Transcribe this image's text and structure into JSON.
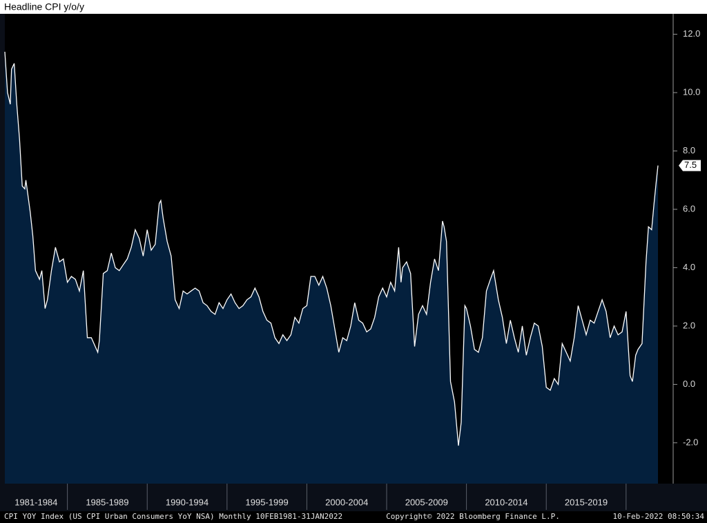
{
  "chart_data": {
    "type": "area",
    "title": "Headline CPI y/o/y",
    "footer_left": "CPI YOY Index (US CPI Urban Consumers YoY NSA)  Monthly 10FEB1981-31JAN2022",
    "footer_middle": "Copyright© 2022 Bloomberg Finance L.P.",
    "footer_right": "10-Feb-2022 08:50:34",
    "last_value_label": "7.5",
    "x_bands": [
      "1981-1984",
      "1985-1989",
      "1990-1994",
      "1995-1999",
      "2000-2004",
      "2005-2009",
      "2010-2014",
      "2015-2019"
    ],
    "xticks": [
      1985,
      1990,
      1995,
      2000,
      2005,
      2010,
      2015,
      2020
    ],
    "xlim": [
      1981.08,
      2022.95
    ],
    "ylim": [
      -3.4,
      12.7
    ],
    "yticks": [
      {
        "value": -2,
        "label": "-2.0"
      },
      {
        "value": 0,
        "label": "0.0"
      },
      {
        "value": 2,
        "label": "2.0"
      },
      {
        "value": 4,
        "label": "4.0"
      },
      {
        "value": 6,
        "label": "6.0"
      },
      {
        "value": 8,
        "label": "8.0"
      },
      {
        "value": 10,
        "label": "10.0"
      },
      {
        "value": 12,
        "label": "12.0"
      }
    ],
    "series": [
      {
        "name": "CPI YOY Index",
        "color": "#ffffff",
        "fill": "#04203d",
        "x": [
          1981.08,
          1981.25,
          1981.42,
          1981.5,
          1981.67,
          1981.83,
          1982.0,
          1982.17,
          1982.33,
          1982.4,
          1982.67,
          1982.83,
          1983.0,
          1983.25,
          1983.4,
          1983.6,
          1983.75,
          1984.0,
          1984.25,
          1984.5,
          1984.75,
          1985.0,
          1985.25,
          1985.5,
          1985.75,
          1986.0,
          1986.25,
          1986.5,
          1986.9,
          1987.0,
          1987.25,
          1987.5,
          1987.75,
          1988.0,
          1988.25,
          1988.5,
          1988.75,
          1989.0,
          1989.25,
          1989.5,
          1989.75,
          1990.0,
          1990.25,
          1990.5,
          1990.75,
          1990.85,
          1991.0,
          1991.25,
          1991.5,
          1991.75,
          1992.0,
          1992.25,
          1992.5,
          1992.75,
          1993.0,
          1993.25,
          1993.5,
          1993.75,
          1994.0,
          1994.25,
          1994.5,
          1994.75,
          1995.0,
          1995.25,
          1995.5,
          1995.75,
          1996.0,
          1996.25,
          1996.5,
          1996.75,
          1997.0,
          1997.25,
          1997.5,
          1997.75,
          1998.0,
          1998.25,
          1998.5,
          1998.75,
          1999.0,
          1999.25,
          1999.5,
          1999.75,
          2000.0,
          2000.25,
          2000.5,
          2000.75,
          2001.0,
          2001.25,
          2001.5,
          2001.75,
          2002.0,
          2002.25,
          2002.5,
          2002.75,
          2003.0,
          2003.25,
          2003.5,
          2003.75,
          2004.0,
          2004.25,
          2004.5,
          2004.75,
          2005.0,
          2005.25,
          2005.5,
          2005.75,
          2005.9,
          2006.0,
          2006.25,
          2006.5,
          2006.75,
          2007.0,
          2007.25,
          2007.5,
          2007.75,
          2008.0,
          2008.25,
          2008.5,
          2008.6,
          2008.75,
          2009.0,
          2009.25,
          2009.5,
          2009.67,
          2009.9,
          2010.0,
          2010.25,
          2010.5,
          2010.75,
          2011.0,
          2011.25,
          2011.5,
          2011.7,
          2012.0,
          2012.25,
          2012.5,
          2012.75,
          2013.0,
          2013.25,
          2013.5,
          2013.75,
          2014.0,
          2014.25,
          2014.5,
          2014.75,
          2015.0,
          2015.25,
          2015.5,
          2015.75,
          2016.0,
          2016.25,
          2016.5,
          2016.75,
          2017.0,
          2017.25,
          2017.5,
          2017.75,
          2018.0,
          2018.25,
          2018.5,
          2018.75,
          2019.0,
          2019.25,
          2019.5,
          2019.75,
          2020.0,
          2020.25,
          2020.4,
          2020.6,
          2020.75,
          2021.0,
          2021.25,
          2021.4,
          2021.6,
          2021.75,
          2021.9,
          2022.0
        ],
        "values": [
          11.4,
          10.0,
          9.6,
          10.8,
          11.0,
          9.6,
          8.4,
          6.8,
          6.7,
          7.0,
          5.9,
          5.1,
          3.9,
          3.6,
          3.9,
          2.6,
          2.9,
          3.9,
          4.7,
          4.2,
          4.3,
          3.5,
          3.7,
          3.6,
          3.2,
          3.9,
          1.6,
          1.6,
          1.1,
          1.5,
          3.8,
          3.9,
          4.5,
          4.0,
          3.9,
          4.1,
          4.3,
          4.7,
          5.3,
          5.0,
          4.4,
          5.3,
          4.6,
          4.8,
          6.2,
          6.3,
          5.7,
          4.9,
          4.4,
          2.9,
          2.6,
          3.2,
          3.1,
          3.2,
          3.3,
          3.2,
          2.8,
          2.7,
          2.5,
          2.4,
          2.8,
          2.6,
          2.9,
          3.1,
          2.8,
          2.6,
          2.7,
          2.9,
          3.0,
          3.3,
          3.0,
          2.5,
          2.2,
          2.1,
          1.6,
          1.4,
          1.7,
          1.5,
          1.7,
          2.3,
          2.1,
          2.6,
          2.7,
          3.7,
          3.7,
          3.4,
          3.7,
          3.3,
          2.7,
          1.9,
          1.1,
          1.6,
          1.5,
          2.0,
          2.8,
          2.2,
          2.1,
          1.8,
          1.9,
          2.3,
          3.0,
          3.3,
          3.0,
          3.5,
          3.2,
          4.7,
          3.5,
          4.0,
          4.2,
          3.8,
          1.3,
          2.4,
          2.7,
          2.4,
          3.5,
          4.3,
          3.9,
          5.6,
          5.4,
          4.9,
          0.1,
          -0.6,
          -2.1,
          -1.3,
          2.7,
          2.6,
          2.0,
          1.2,
          1.1,
          1.6,
          3.2,
          3.6,
          3.9,
          2.9,
          2.3,
          1.4,
          2.2,
          1.6,
          1.1,
          2.0,
          1.0,
          1.6,
          2.1,
          2.0,
          1.3,
          -0.1,
          -0.2,
          0.2,
          0.0,
          1.4,
          1.1,
          0.8,
          1.6,
          2.7,
          2.2,
          1.7,
          2.2,
          2.1,
          2.5,
          2.9,
          2.5,
          1.6,
          2.0,
          1.7,
          1.8,
          2.5,
          0.3,
          0.1,
          1.0,
          1.2,
          1.4,
          4.2,
          5.4,
          5.3,
          6.2,
          7.0,
          7.5
        ]
      }
    ]
  }
}
